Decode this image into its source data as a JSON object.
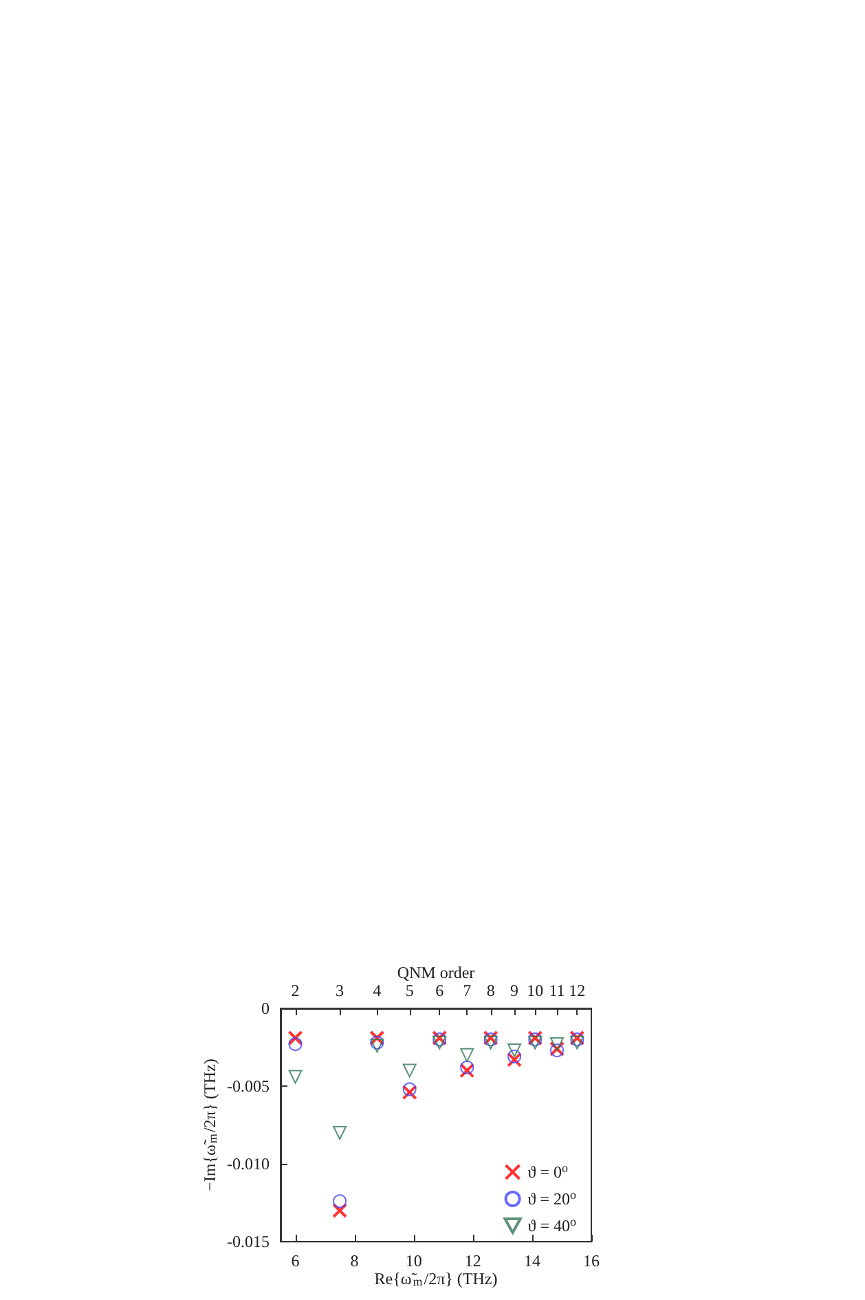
{
  "chart_data": {
    "type": "scatter",
    "xlabel": "Re{ω̃$_{m}$/2π} (THz)",
    "ylabel": "−Im{ω̃$_{m}$/2π} (THz)",
    "x2label": "QNM order",
    "x": [
      6.0,
      7.5,
      8.76,
      9.86,
      10.87,
      11.8,
      12.6,
      13.4,
      14.1,
      14.84,
      15.52
    ],
    "series": [
      {
        "name": "ϑ = 0$^{o}$",
        "color": "#ff0000",
        "marker": "cross",
        "values": [
          -0.0019,
          -0.013,
          -0.0019,
          -0.0054,
          -0.0019,
          -0.004,
          -0.0019,
          -0.0033,
          -0.0019,
          -0.0026,
          -0.0019
        ]
      },
      {
        "name": "ϑ = 20$^{o}$",
        "color": "#4444ff",
        "marker": "circle",
        "values": [
          -0.0023,
          -0.0124,
          -0.0022,
          -0.0052,
          -0.002,
          -0.0038,
          -0.002,
          -0.0031,
          -0.002,
          -0.0027,
          -0.002
        ]
      },
      {
        "name": "ϑ = 40$^{o}$",
        "color": "#337755",
        "marker": "triangle",
        "values": [
          -0.0044,
          -0.008,
          -0.0024,
          -0.004,
          -0.0022,
          -0.003,
          -0.0022,
          -0.0027,
          -0.0022,
          -0.0023,
          -0.0022
        ]
      }
    ],
    "xlim": [
      5.5,
      16
    ],
    "xticks": [
      6,
      8,
      10,
      12,
      14,
      16
    ],
    "annotations": [
      "2",
      "3",
      "4",
      "5",
      "6",
      "7",
      "8",
      "9",
      "10",
      "11",
      "12"
    ],
    "ylim": [
      -0.015,
      0
    ],
    "yticks": [
      {
        "value": -0.015,
        "label": "-0.015"
      },
      {
        "value": -0.01,
        "label": "-0.010"
      },
      {
        "value": -0.005,
        "label": "-0.005"
      },
      0
    ],
    "grid": false,
    "legend": "bottom right"
  }
}
